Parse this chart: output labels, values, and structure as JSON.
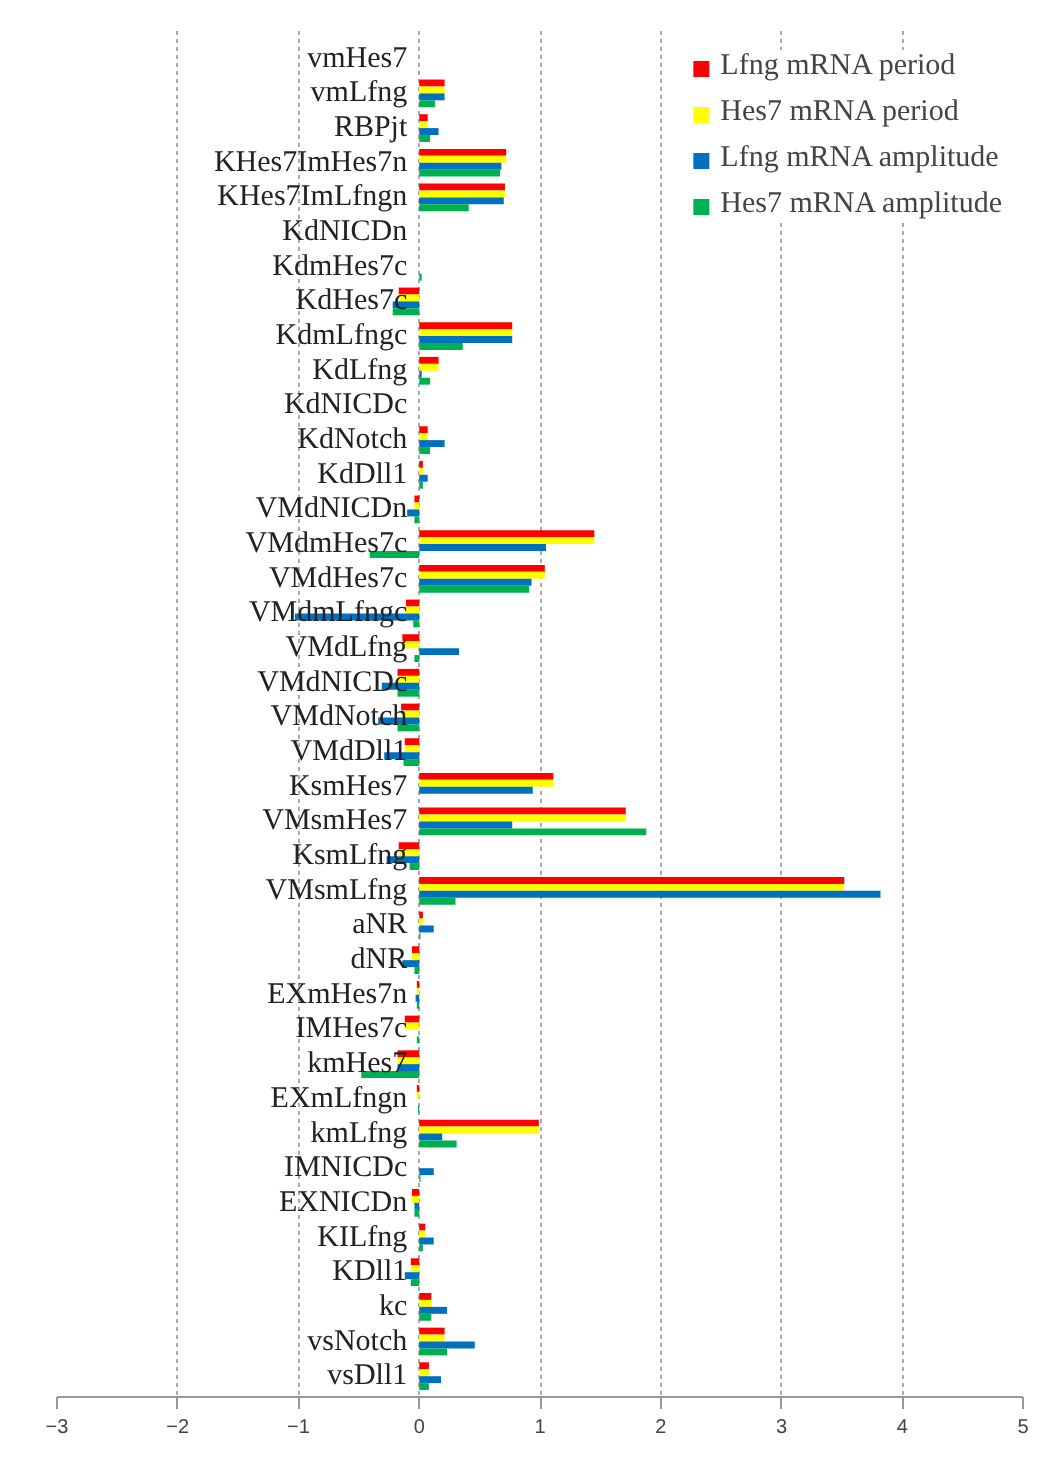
{
  "chart_data": {
    "type": "bar",
    "orientation": "horizontal",
    "categories": [
      "vmHes7",
      "vmLfng",
      "RBPjt",
      "KHes7ImHes7n",
      "KHes7ImLfngn",
      "KdNICDn",
      "KdmHes7c",
      "KdHes7c",
      "KdmLfngc",
      "KdLfng",
      "KdNICDc",
      "KdNotch",
      "KdDll1",
      "VMdNICDn",
      "VMdmHes7c",
      "VMdHes7c",
      "VMdmLfngc",
      "VMdLfng",
      "VMdNICDc",
      "VMdNotch",
      "VMdDll1",
      "KsmHes7",
      "VMsmHes7",
      "KsmLfng",
      "VMsmLfng",
      "aNR",
      "dNR",
      "EXmHes7n",
      "IMHes7c",
      "kmHes7",
      "EXmLfngn",
      "kmLfng",
      "IMNICDc",
      "EXNICDn",
      "KILfng",
      "KDll1",
      "kc",
      "vsNotch",
      "vsDll1"
    ],
    "series": [
      {
        "name": "Lfng mRNA period",
        "color": "#ff0000",
        "values": [
          0,
          0.21,
          0.07,
          0.72,
          0.71,
          0,
          0,
          -0.17,
          0.77,
          0.16,
          0,
          0.07,
          0.03,
          -0.04,
          1.45,
          1.04,
          -0.11,
          -0.14,
          -0.18,
          -0.15,
          -0.12,
          1.11,
          1.71,
          -0.17,
          3.52,
          0.03,
          -0.06,
          -0.02,
          -0.12,
          -0.18,
          -0.02,
          0.99,
          0,
          -0.06,
          0.05,
          -0.07,
          0.1,
          0.21,
          0.08
        ]
      },
      {
        "name": "Hes7 mRNA period",
        "color": "#ffff00",
        "values": [
          0,
          0.21,
          0.07,
          0.72,
          0.71,
          0,
          0,
          -0.17,
          0.77,
          0.16,
          0,
          0.07,
          0.03,
          -0.04,
          1.45,
          1.04,
          -0.11,
          -0.14,
          -0.18,
          -0.15,
          -0.12,
          1.11,
          1.71,
          -0.17,
          3.52,
          0.03,
          -0.06,
          -0.02,
          -0.12,
          -0.18,
          -0.02,
          0.99,
          0,
          -0.06,
          0.05,
          -0.07,
          0.1,
          0.21,
          0.08
        ]
      },
      {
        "name": "Lfng mRNA amplitude",
        "color": "#0070c0",
        "values": [
          0,
          0.21,
          0.16,
          0.68,
          0.7,
          0,
          0,
          -0.22,
          0.77,
          0.02,
          0,
          0.21,
          0.07,
          -0.1,
          1.05,
          0.93,
          -1.03,
          0.33,
          -0.31,
          -0.34,
          -0.29,
          0.94,
          0.77,
          -0.27,
          3.82,
          0.12,
          -0.14,
          -0.03,
          0,
          -0.18,
          0,
          0.19,
          0.12,
          -0.04,
          0.12,
          -0.12,
          0.23,
          0.46,
          0.18
        ]
      },
      {
        "name": "Hes7 mRNA amplitude",
        "color": "#00b050",
        "values": [
          0,
          0.13,
          0.09,
          0.67,
          0.41,
          0,
          0.02,
          -0.22,
          0.36,
          0.09,
          0,
          0.09,
          0.03,
          -0.04,
          -0.41,
          0.91,
          -0.05,
          -0.04,
          -0.18,
          -0.18,
          -0.13,
          0,
          1.88,
          -0.08,
          0.3,
          0.01,
          -0.04,
          -0.02,
          -0.02,
          -0.48,
          -0.01,
          0.31,
          0.01,
          -0.04,
          0.03,
          -0.07,
          0.1,
          0.23,
          0.08
        ]
      }
    ],
    "xlim": [
      -3,
      5
    ],
    "xticks": [
      -3,
      -2,
      -1,
      0,
      1,
      2,
      3,
      4,
      5
    ],
    "grid": "x",
    "legend": "top right"
  }
}
